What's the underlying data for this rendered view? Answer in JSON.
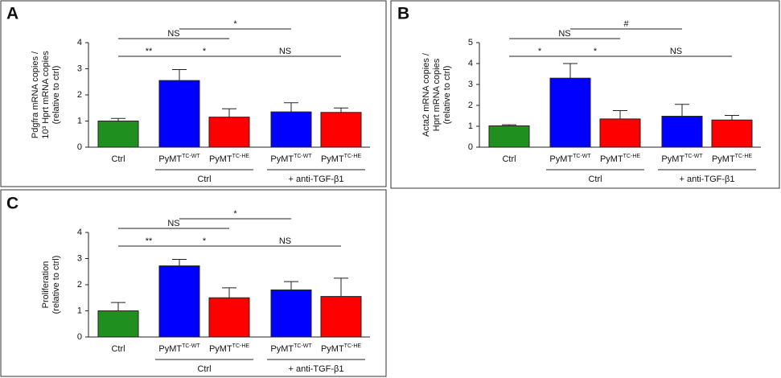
{
  "chart_data": [
    {
      "type": "bar",
      "panel_label": "A",
      "ylabel": [
        "Pdgfra mRNA copies /",
        "10³ Hprt mRNA copies",
        "(relative to ctrl)"
      ],
      "categories": [
        "Ctrl",
        "PyMT",
        "PyMT",
        "PyMT",
        "PyMT"
      ],
      "category_superscripts": [
        null,
        "TC-WT",
        "TC-HE",
        "TC-WT",
        "TC-HE"
      ],
      "values": [
        1.0,
        2.55,
        1.15,
        1.35,
        1.33
      ],
      "errors": [
        0.1,
        0.42,
        0.32,
        0.35,
        0.17
      ],
      "colors": [
        "#1f8f1f",
        "#0000ff",
        "#ff0000",
        "#0000ff",
        "#ff0000"
      ],
      "ylim": [
        0,
        4
      ],
      "yticks": [
        0,
        1,
        2,
        3,
        4
      ],
      "annotations": [
        "*",
        "NS",
        "**",
        "*",
        "NS"
      ],
      "group_labels": [
        "Ctrl",
        "+ anti-TGF-β1"
      ]
    },
    {
      "type": "bar",
      "panel_label": "B",
      "ylabel": [
        "Acta2 mRNA copies /",
        "Hprt mRNA copies",
        "(relative to ctrl)"
      ],
      "categories": [
        "Ctrl",
        "PyMT",
        "PyMT",
        "PyMT",
        "PyMT"
      ],
      "category_superscripts": [
        null,
        "TC-WT",
        "TC-HE",
        "TC-WT",
        "TC-HE"
      ],
      "values": [
        1.02,
        3.3,
        1.35,
        1.48,
        1.3
      ],
      "errors": [
        0.05,
        0.7,
        0.4,
        0.57,
        0.22
      ],
      "colors": [
        "#1f8f1f",
        "#0000ff",
        "#ff0000",
        "#0000ff",
        "#ff0000"
      ],
      "ylim": [
        0,
        5
      ],
      "yticks": [
        0,
        1,
        2,
        3,
        4,
        5
      ],
      "annotations": [
        "#",
        "NS",
        "*",
        "*",
        "NS"
      ],
      "group_labels": [
        "Ctrl",
        "+ anti-TGF-β1"
      ]
    },
    {
      "type": "bar",
      "panel_label": "C",
      "ylabel": [
        "Proliferation",
        "(relative to ctrl)"
      ],
      "categories": [
        "Ctrl",
        "PyMT",
        "PyMT",
        "PyMT",
        "PyMT"
      ],
      "category_superscripts": [
        null,
        "TC-WT",
        "TC-HE",
        "TC-WT",
        "TC-HE"
      ],
      "values": [
        1.0,
        2.72,
        1.5,
        1.8,
        1.55
      ],
      "errors": [
        0.32,
        0.25,
        0.38,
        0.32,
        0.7
      ],
      "colors": [
        "#1f8f1f",
        "#0000ff",
        "#ff0000",
        "#0000ff",
        "#ff0000"
      ],
      "ylim": [
        0,
        4
      ],
      "yticks": [
        0,
        1,
        2,
        3,
        4
      ],
      "annotations": [
        "*",
        "NS",
        "**",
        "*",
        "NS"
      ],
      "group_labels": [
        "Ctrl",
        "+ anti-TGF-β1"
      ]
    }
  ]
}
